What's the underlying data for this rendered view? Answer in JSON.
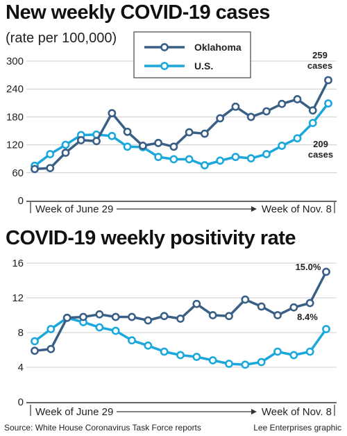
{
  "colors": {
    "oklahoma": "#3a5f86",
    "us": "#1aa8dc",
    "grid": "#cccccc",
    "axis": "#333333"
  },
  "footer": {
    "source": "Source: White House Coronavirus Task Force reports",
    "credit": "Lee Enterprises graphic"
  },
  "chart_data": [
    {
      "type": "line",
      "title": "New weekly COVID-19 cases",
      "subtitle": "(rate per 100,000)",
      "x_start_label": "Week of June 29",
      "x_end_label": "Week of Nov. 8",
      "yticks": [
        "0",
        "60",
        "120",
        "180",
        "240",
        "300"
      ],
      "ylim": [
        0,
        300
      ],
      "legend": [
        "Oklahoma",
        "U.S."
      ],
      "series": [
        {
          "name": "Oklahoma",
          "values": [
            68,
            70,
            103,
            130,
            128,
            188,
            148,
            118,
            124,
            116,
            147,
            144,
            177,
            202,
            180,
            192,
            208,
            218,
            194,
            259
          ]
        },
        {
          "name": "U.S.",
          "values": [
            75,
            100,
            120,
            141,
            142,
            139,
            116,
            115,
            94,
            89,
            89,
            76,
            86,
            94,
            91,
            100,
            118,
            134,
            167,
            209
          ]
        }
      ],
      "end_labels": {
        "oklahoma": [
          "259",
          "cases"
        ],
        "us": [
          "209",
          "cases"
        ]
      }
    },
    {
      "type": "line",
      "title": "COVID-19 weekly positivity rate",
      "x_start_label": "Week of June 29",
      "x_end_label": "Week of Nov. 8",
      "yticks": [
        "0",
        "4",
        "8",
        "12",
        "16"
      ],
      "ylim": [
        0,
        16
      ],
      "series": [
        {
          "name": "Oklahoma",
          "values": [
            5.9,
            6.1,
            9.7,
            9.8,
            10.1,
            9.8,
            9.8,
            9.4,
            9.9,
            9.6,
            11.3,
            10.0,
            9.9,
            11.8,
            11.0,
            10.0,
            10.9,
            11.4,
            15.0
          ]
        },
        {
          "name": "U.S.",
          "values": [
            7.0,
            8.4,
            9.7,
            9.2,
            8.6,
            8.2,
            7.1,
            6.5,
            5.8,
            5.4,
            5.2,
            4.8,
            4.4,
            4.3,
            4.6,
            5.8,
            5.4,
            5.8,
            8.4
          ]
        }
      ],
      "end_labels": {
        "oklahoma": "15.0%",
        "us": "8.4%"
      }
    }
  ]
}
